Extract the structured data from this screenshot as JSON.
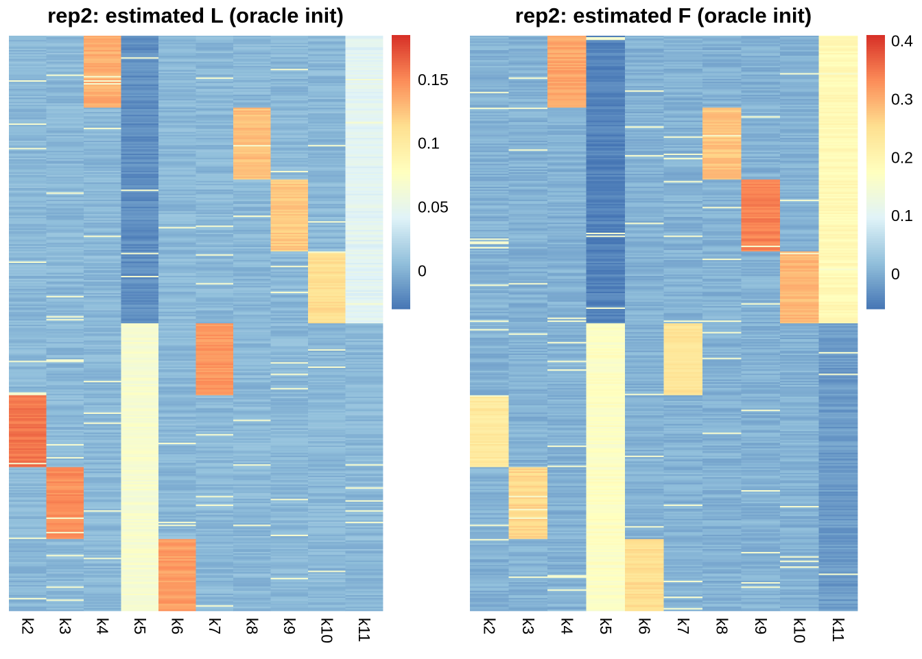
{
  "chart_data": [
    {
      "type": "heatmap",
      "title": "rep2: estimated L (oracle init)",
      "columns": [
        "k2",
        "k3",
        "k4",
        "k5",
        "k6",
        "k7",
        "k8",
        "k9",
        "k10",
        "k11"
      ],
      "n_rows": 400,
      "colorbar": {
        "min": -0.03,
        "max": 0.185,
        "ticks": [
          0,
          0.05,
          0.1,
          0.15
        ],
        "tick_labels": [
          "0",
          "0.05",
          "0.1",
          "0.15"
        ]
      },
      "colorscale": [
        "#4575b4",
        "#91bfdb",
        "#e0f3f8",
        "#ffffbf",
        "#fee090",
        "#fc8d59",
        "#d73027"
      ],
      "background_value": 0.003,
      "blocks": [
        {
          "column": "k4",
          "rows": [
            0,
            50
          ],
          "value": 0.135
        },
        {
          "column": "k8",
          "rows": [
            50,
            100
          ],
          "value": 0.127
        },
        {
          "column": "k9",
          "rows": [
            100,
            150
          ],
          "value": 0.122
        },
        {
          "column": "k10",
          "rows": [
            150,
            200
          ],
          "value": 0.112
        },
        {
          "column": "k7",
          "rows": [
            200,
            250
          ],
          "value": 0.145
        },
        {
          "column": "k2",
          "rows": [
            250,
            300
          ],
          "value": 0.158
        },
        {
          "column": "k3",
          "rows": [
            300,
            350
          ],
          "value": 0.148
        },
        {
          "column": "k6",
          "rows": [
            350,
            400
          ],
          "value": 0.142
        },
        {
          "column": "k5",
          "rows": [
            200,
            400
          ],
          "value": 0.068
        },
        {
          "column": "k5",
          "rows": [
            0,
            200
          ],
          "value": -0.018
        },
        {
          "column": "k11",
          "rows": [
            0,
            200
          ],
          "value": 0.045
        }
      ]
    },
    {
      "type": "heatmap",
      "title": "rep2: estimated F (oracle init)",
      "columns": [
        "k2",
        "k3",
        "k4",
        "k5",
        "k6",
        "k7",
        "k8",
        "k9",
        "k10",
        "k11"
      ],
      "n_rows": 400,
      "colorbar": {
        "min": -0.06,
        "max": 0.41,
        "ticks": [
          0,
          0.1,
          0.2,
          0.3,
          0.4
        ],
        "tick_labels": [
          "0",
          "0.1",
          "0.2",
          "0.3",
          "0.4"
        ]
      },
      "colorscale": [
        "#4575b4",
        "#91bfdb",
        "#e0f3f8",
        "#ffffbf",
        "#fee090",
        "#fc8d59",
        "#d73027"
      ],
      "background_value": 0.005,
      "blocks": [
        {
          "column": "k4",
          "rows": [
            0,
            50
          ],
          "value": 0.31
        },
        {
          "column": "k8",
          "rows": [
            50,
            100
          ],
          "value": 0.28
        },
        {
          "column": "k9",
          "rows": [
            100,
            150
          ],
          "value": 0.34
        },
        {
          "column": "k10",
          "rows": [
            150,
            200
          ],
          "value": 0.29
        },
        {
          "column": "k7",
          "rows": [
            200,
            250
          ],
          "value": 0.24
        },
        {
          "column": "k2",
          "rows": [
            250,
            300
          ],
          "value": 0.23
        },
        {
          "column": "k3",
          "rows": [
            300,
            350
          ],
          "value": 0.26
        },
        {
          "column": "k6",
          "rows": [
            350,
            400
          ],
          "value": 0.25
        },
        {
          "column": "k5",
          "rows": [
            200,
            400
          ],
          "value": 0.17
        },
        {
          "column": "k5",
          "rows": [
            0,
            200
          ],
          "value": -0.045
        },
        {
          "column": "k11",
          "rows": [
            0,
            200
          ],
          "value": 0.19
        },
        {
          "column": "k11",
          "rows": [
            200,
            400
          ],
          "value": -0.02
        }
      ]
    }
  ]
}
